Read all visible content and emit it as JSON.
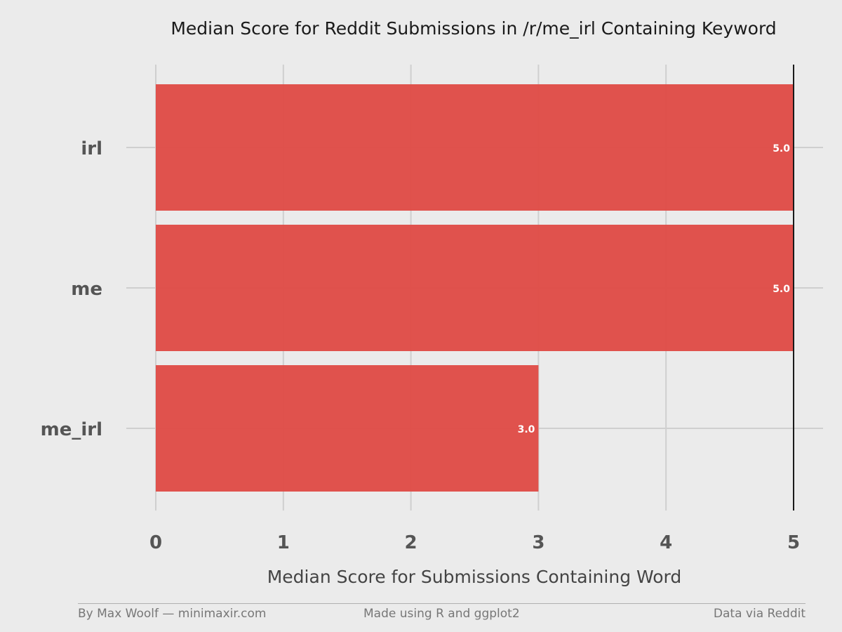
{
  "chart_data": {
    "type": "bar",
    "orientation": "horizontal",
    "title": "Median Score for Reddit Submissions in /r/me_irl Containing Keyword",
    "xlabel": "Median Score for Submissions Containing Word",
    "ylabel": "",
    "categories": [
      "irl",
      "me",
      "me_irl"
    ],
    "values": [
      5.0,
      5.0,
      3.0
    ],
    "value_labels": [
      "5.0",
      "5.0",
      "3.0"
    ],
    "xlim": [
      0,
      5
    ],
    "xticks": [
      0,
      1,
      2,
      3,
      4,
      5
    ],
    "grid": true,
    "legend": "none",
    "reference_line": 5,
    "bar_color": "#df4a44"
  },
  "footer": {
    "left": "By Max Woolf — minimaxir.com",
    "center": "Made using R and ggplot2",
    "right": "Data via Reddit"
  }
}
